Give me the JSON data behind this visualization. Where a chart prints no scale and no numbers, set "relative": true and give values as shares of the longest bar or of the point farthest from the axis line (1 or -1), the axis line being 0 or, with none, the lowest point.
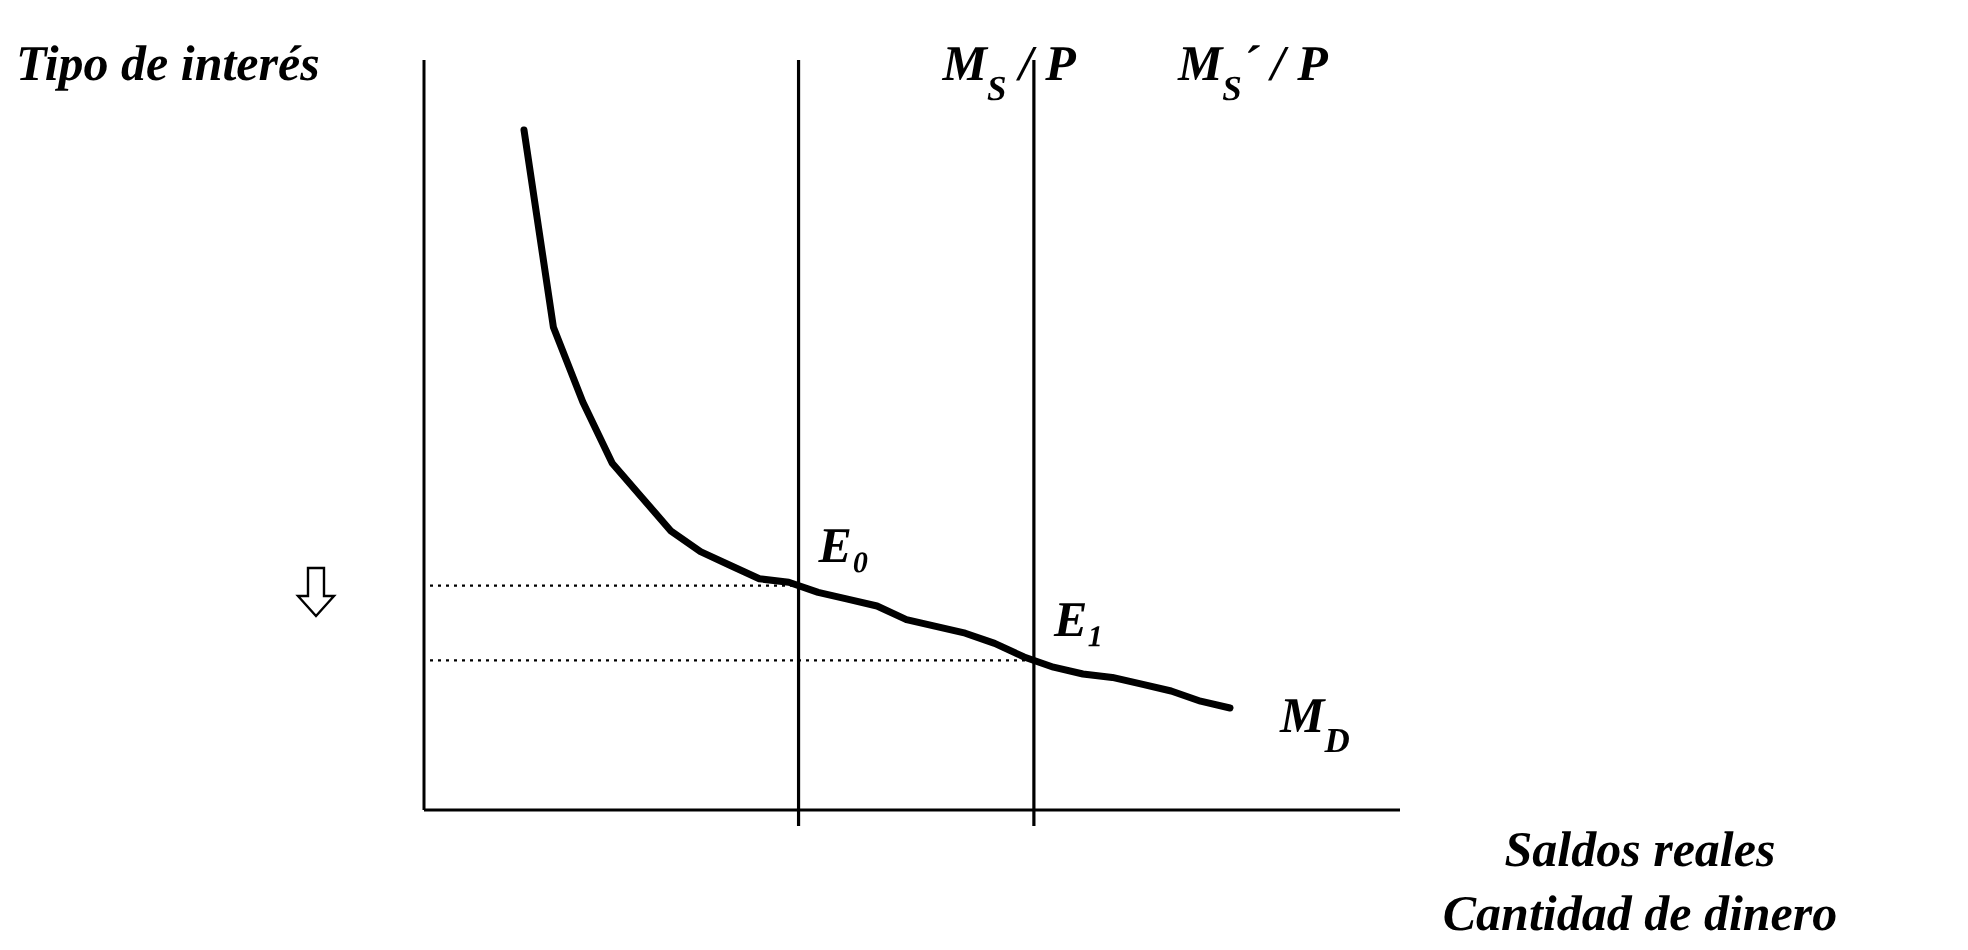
{
  "chart_data": {
    "type": "line",
    "relative": true,
    "ylabel": "Tipo de interés",
    "xlabel": "Saldos reales\nCantidad de dinero",
    "categories": [
      null,
      null,
      null,
      null,
      null,
      null,
      null,
      null,
      null,
      null,
      null,
      null,
      null,
      null,
      null,
      null,
      null,
      null,
      null,
      null,
      null,
      null,
      null,
      null,
      null
    ],
    "series": [
      {
        "name": "M$_{D}$",
        "color": "#000000",
        "values": [
          1.0,
          0.71,
          0.6,
          0.51,
          0.46,
          0.41,
          0.38,
          0.36,
          0.34,
          0.335,
          0.32,
          0.31,
          0.3,
          0.28,
          0.27,
          0.26,
          0.245,
          0.225,
          0.21,
          0.2,
          0.195,
          0.185,
          0.175,
          0.16,
          0.15
        ]
      }
    ],
    "ref_lines": [
      {
        "axis": "x",
        "label": "M$_{S}$ / P",
        "color": "#000000",
        "line_style": "solid"
      },
      {
        "axis": "x",
        "label": "M$_{S}$´ / P",
        "color": "#000000",
        "line_style": "solid"
      },
      {
        "axis": "y",
        "value": 0.33,
        "color": "#000000",
        "line_style": "dotted"
      },
      {
        "axis": "y",
        "value": 0.22,
        "color": "#000000",
        "line_style": "dotted"
      }
    ],
    "annotations": [
      {
        "text": "E₀",
        "y": 0.33
      },
      {
        "text": "E₁",
        "y": 0.22
      }
    ],
    "legend": false,
    "marker": "none",
    "line_style": "solid"
  }
}
